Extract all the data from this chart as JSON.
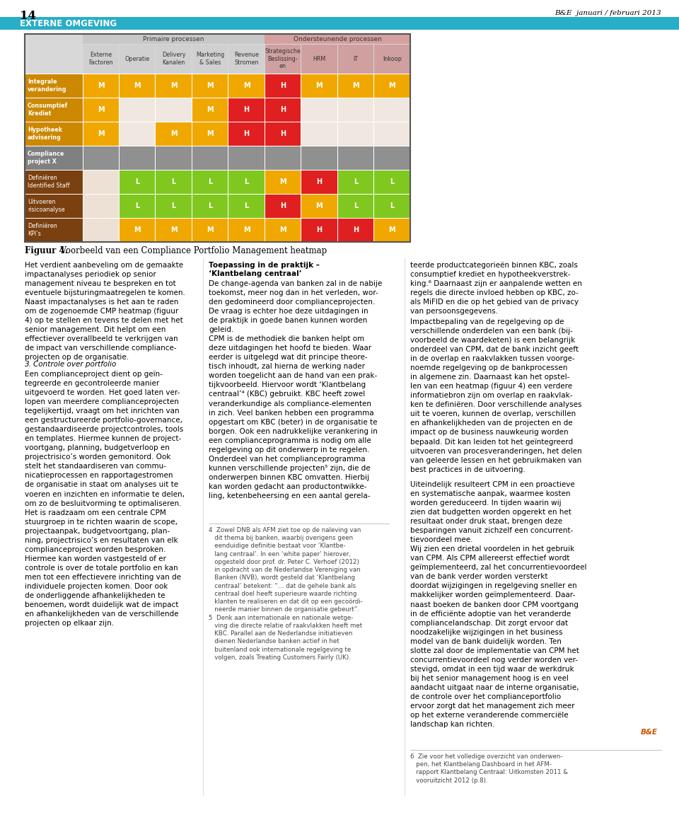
{
  "page_bg": "#ffffff",
  "header_bg": "#29aec7",
  "header_text": "EXTERNE OMGEVING",
  "header_text_color": "#ffffff",
  "page_number": "14",
  "journal_title": "B&E  januari / februari 2013",
  "primary_processes_label": "Primaire processen",
  "supporting_processes_label": "Ondersteunende processen",
  "col_headers": [
    "Externe\nFactoren",
    "Operatie",
    "Delivery\nKanalen",
    "Marketing\n& Sales",
    "Revenue\nStromen",
    "Strategische\nBeslissing-\nen",
    "HRM",
    "IT",
    "Inkoop"
  ],
  "row_headers": [
    "Integrale\nverandering",
    "Consumptief\nKrediet",
    "Hypotheek\nadvisering",
    "Compliance\nproject X",
    "Definiëren\nIdentified Staff",
    "Uitvoeren\nrisicoanalyse",
    "Definiëren\nKPI’s"
  ],
  "n_primary": 5,
  "n_support": 4,
  "cells": [
    [
      "M_gold",
      "M_gold",
      "M_gold",
      "M_gold",
      "M_gold",
      "H_red",
      "M_gold",
      "M_gold",
      "M_gold"
    ],
    [
      "M_gold",
      "empty",
      "empty",
      "M_gold",
      "H_red",
      "H_red",
      "empty",
      "empty",
      "empty"
    ],
    [
      "M_gold",
      "empty",
      "M_gold",
      "M_gold",
      "H_red",
      "H_red",
      "empty",
      "empty",
      "empty"
    ],
    [
      "grey",
      "grey",
      "grey",
      "grey",
      "grey",
      "grey",
      "grey",
      "grey",
      "grey"
    ],
    [
      "empty_pink",
      "L_green",
      "L_green",
      "L_green",
      "L_green",
      "M_gold",
      "H_red",
      "L_green",
      "L_green"
    ],
    [
      "empty_pink",
      "L_green",
      "L_green",
      "L_green",
      "L_green",
      "H_red",
      "M_gold",
      "L_green",
      "L_green"
    ],
    [
      "empty_pink",
      "M_gold",
      "M_gold",
      "M_gold",
      "M_gold",
      "M_gold",
      "H_red",
      "H_red",
      "M_gold"
    ]
  ],
  "cell_labels": [
    [
      "M",
      "M",
      "M",
      "M",
      "M",
      "H",
      "M",
      "M",
      "M"
    ],
    [
      "M",
      "",
      "",
      "M",
      "H",
      "H",
      "",
      "",
      ""
    ],
    [
      "M",
      "",
      "M",
      "M",
      "H",
      "H",
      "",
      "",
      ""
    ],
    [
      "",
      "",
      "",
      "",
      "",
      "",
      "",
      "",
      ""
    ],
    [
      "",
      "L",
      "L",
      "L",
      "L",
      "M",
      "H",
      "L",
      "L"
    ],
    [
      "",
      "L",
      "L",
      "L",
      "L",
      "H",
      "M",
      "L",
      "L"
    ],
    [
      "",
      "M",
      "M",
      "M",
      "M",
      "M",
      "H",
      "H",
      "M"
    ]
  ],
  "color_map": {
    "M_gold": "#f0a800",
    "H_red": "#e02020",
    "L_green": "#80c820",
    "grey": "#909090",
    "empty": "#f0e8e0",
    "empty_pink": "#ede0d4"
  },
  "row_group_label_colors": [
    "#cc8800",
    "#cc8800",
    "#cc8800",
    "#808080",
    "#7a4010",
    "#7a4010",
    "#7a4010"
  ],
  "col_header_primary_color": "#d0d0d0",
  "col_header_support_color": "#c8a0a0",
  "group_header_primary_color": "#c0c0c0",
  "group_header_support_color": "#c8a0a0",
  "figcaption_bold": "Figuur 4.",
  "figcaption_rest": "  Voorbeeld van een Compliance Portfolio Management heatmap"
}
